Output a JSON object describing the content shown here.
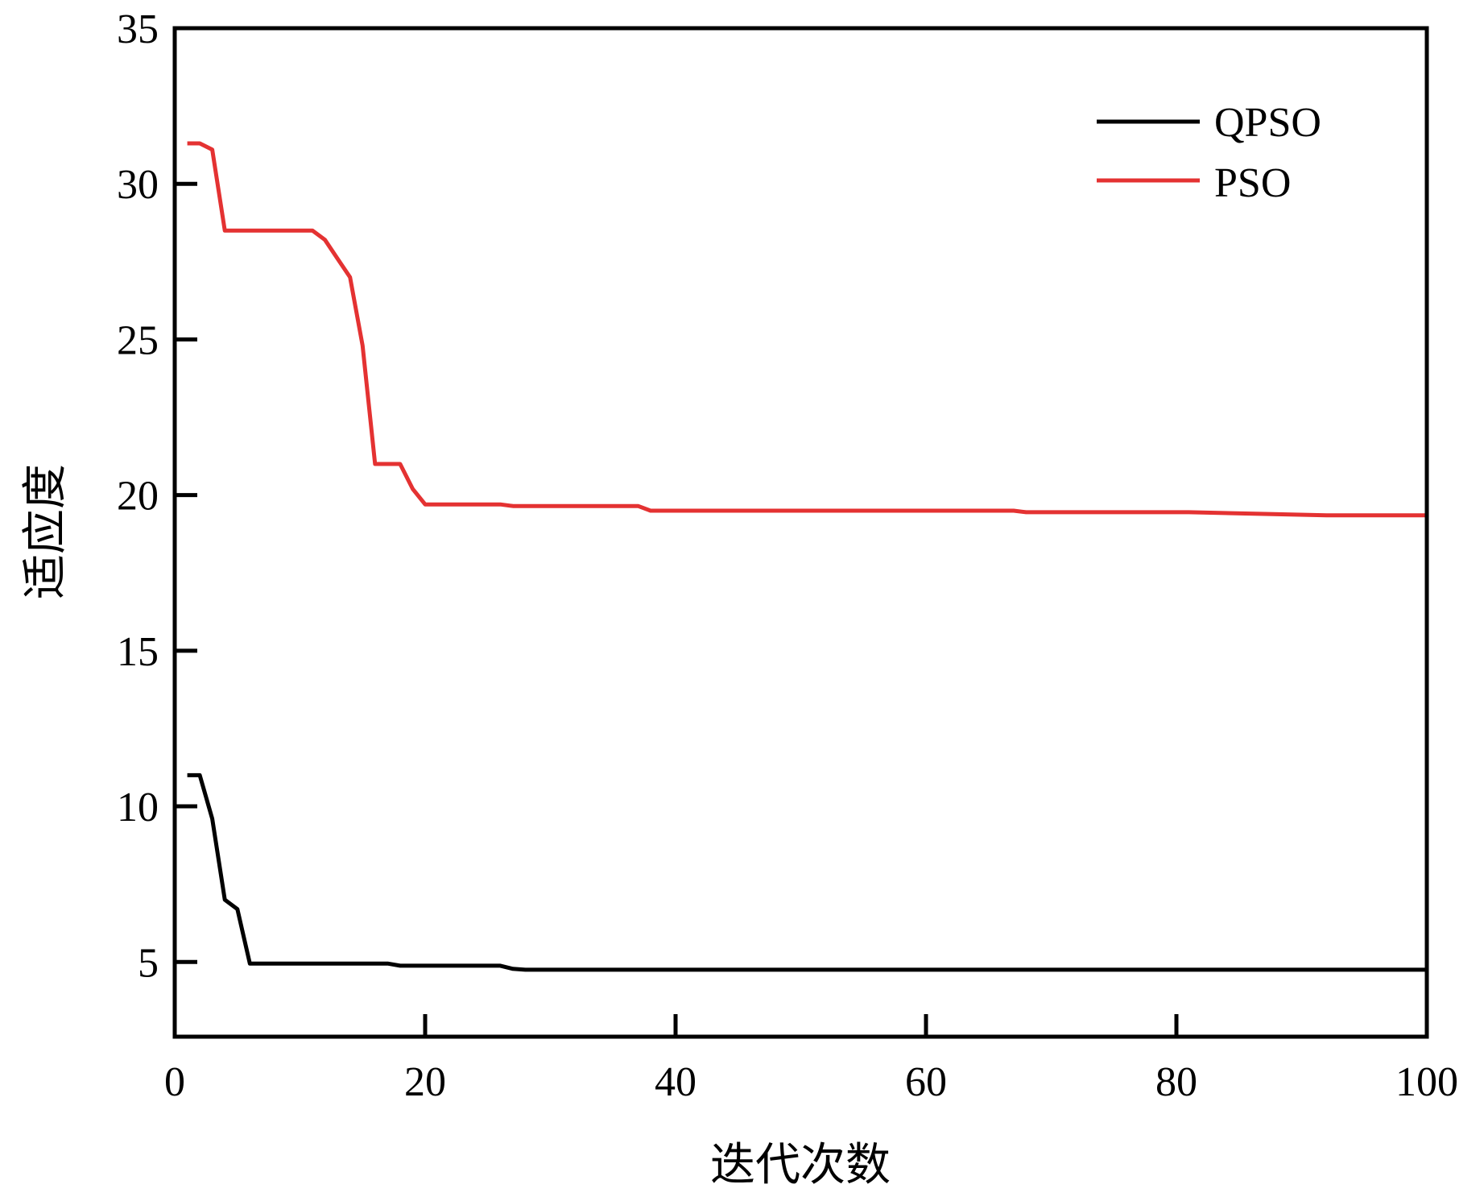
{
  "chart_data": {
    "type": "line",
    "title": "",
    "xlabel": "迭代次数",
    "ylabel": "适应度",
    "xlim": [
      0,
      100
    ],
    "ylim": [
      2.6,
      35
    ],
    "xticks": [
      0,
      20,
      40,
      60,
      80,
      100
    ],
    "yticks": [
      5,
      10,
      15,
      20,
      25,
      30,
      35
    ],
    "grid": false,
    "legend_position": "top-right",
    "series": [
      {
        "name": "QPSO",
        "color": "#000000",
        "x": [
          1,
          2,
          3,
          4,
          5,
          6,
          17,
          18,
          26,
          27,
          28,
          100
        ],
        "y": [
          11.0,
          11.0,
          9.6,
          7.0,
          6.7,
          4.95,
          4.95,
          4.88,
          4.88,
          4.78,
          4.75,
          4.75
        ]
      },
      {
        "name": "PSO",
        "color": "#e43232",
        "x": [
          1,
          2,
          3,
          4,
          11,
          12,
          13,
          14,
          15,
          16,
          17,
          18,
          19,
          20,
          26,
          27,
          37,
          38,
          67,
          68,
          81,
          92,
          100
        ],
        "y": [
          31.3,
          31.3,
          31.1,
          28.5,
          28.5,
          28.2,
          27.6,
          27.0,
          24.8,
          21.0,
          21.0,
          21.0,
          20.2,
          19.7,
          19.7,
          19.65,
          19.65,
          19.5,
          19.5,
          19.45,
          19.45,
          19.35,
          19.35
        ]
      }
    ]
  }
}
